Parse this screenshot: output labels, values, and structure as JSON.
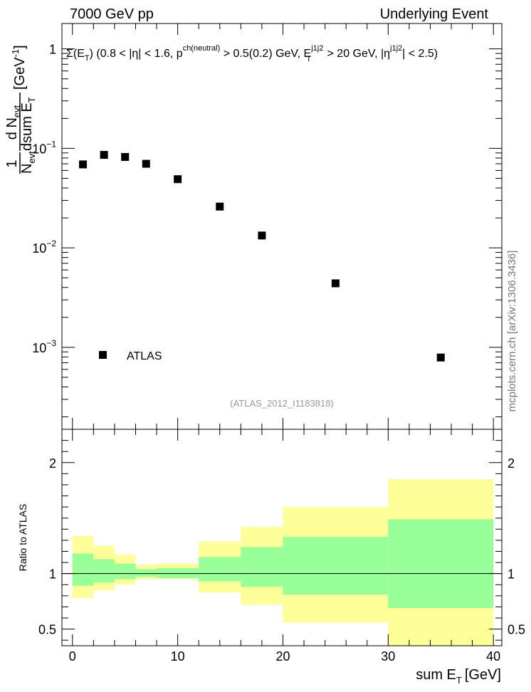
{
  "header": {
    "energy_label": "7000 GeV pp",
    "process_label": "Underlying Event"
  },
  "side_label": "mcplots.cern.ch [arXiv:1306.3436]",
  "chart_data": [
    {
      "type": "scatter",
      "panel": "main",
      "title": {
        "sigma": "Σ",
        "open": "(E",
        "sub1": "T",
        "mid1": ") (0.8 < |η| < 1.6, p",
        "sup1": "ch(neutral)",
        "mid2": " > 0.5(0.2) GeV, E",
        "sup2": "j1j2",
        "sub2": "T",
        "mid3": " > 20 GeV, |η",
        "sup3": "j1j2",
        "end": "| < 2.5)"
      },
      "ylabel": {
        "one": "1",
        "nevt": "N",
        "nevt_sub": "evt",
        "dN": "d N",
        "dN_sub": "evt",
        "dsum": "dsum E",
        "dsum_sub": "T",
        "unit_open": "[GeV",
        "unit_sup": "-1",
        "unit_close": "]"
      },
      "yscale": "log",
      "ylim": [
        0.00015,
        1.8
      ],
      "ytick_labels": [
        {
          "base": "1",
          "exp": ""
        },
        {
          "base": "10",
          "exp": "−1"
        },
        {
          "base": "10",
          "exp": "−2"
        },
        {
          "base": "10",
          "exp": "−3"
        }
      ],
      "series": [
        {
          "name": "ATLAS",
          "marker": "square",
          "x": [
            1,
            3,
            5,
            7,
            10,
            14,
            18,
            25,
            35
          ],
          "y": [
            0.069,
            0.086,
            0.082,
            0.07,
            0.049,
            0.026,
            0.0133,
            0.0044,
            0.00079
          ]
        }
      ],
      "legend": {
        "label": "ATLAS",
        "placement": "bottom-left"
      },
      "annotation": "(ATLAS_2012_I1183818)"
    },
    {
      "type": "area",
      "panel": "ratio",
      "ylabel": "Ratio to ATLAS",
      "xlabel": "sum E",
      "xlabel_sub": "T",
      "xlabel_unit": "[GeV]",
      "xlim": [
        -1,
        40.8
      ],
      "ylim": [
        0.35,
        2.3
      ],
      "x_ticks": [
        "0",
        "10",
        "20",
        "30",
        "40"
      ],
      "y_ticks": [
        "0.5",
        "1",
        "2"
      ],
      "reference_line": 1,
      "bands": {
        "edges": [
          0,
          2,
          4,
          6,
          8,
          12,
          16,
          20,
          30,
          40
        ],
        "inner_upper": [
          1.18,
          1.13,
          1.09,
          1.04,
          1.05,
          1.15,
          1.24,
          1.33,
          1.49
        ],
        "inner_lower": [
          0.89,
          0.92,
          0.95,
          0.97,
          0.96,
          0.93,
          0.88,
          0.81,
          0.69
        ],
        "outer_upper": [
          1.34,
          1.25,
          1.17,
          1.08,
          1.09,
          1.29,
          1.42,
          1.6,
          1.85
        ],
        "outer_lower": [
          0.78,
          0.85,
          0.9,
          0.95,
          0.95,
          0.83,
          0.72,
          0.56,
          0.35
        ],
        "inner_color": "#99ff99",
        "outer_color": "#ffff99"
      }
    }
  ]
}
